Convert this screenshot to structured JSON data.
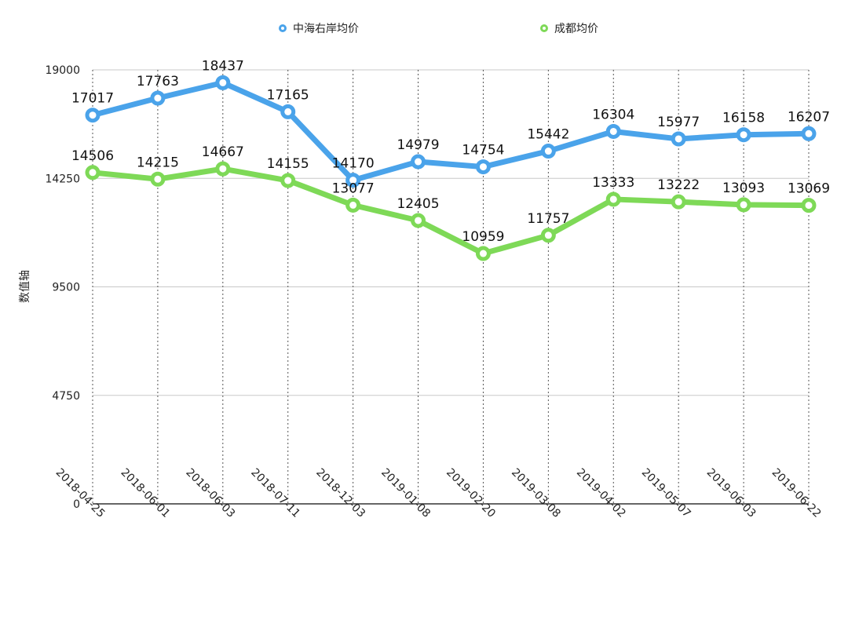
{
  "chart_data": {
    "type": "line",
    "title": "",
    "xlabel": "",
    "ylabel": "数值轴",
    "ylim": [
      0,
      19000
    ],
    "yticks": [
      0,
      4750,
      9500,
      14250,
      19000
    ],
    "categories": [
      "2018-04-25",
      "2018-06-01",
      "2018-06-03",
      "2018-07-11",
      "2018-12-03",
      "2019-01-08",
      "2019-02-20",
      "2019-03-08",
      "2019-04-02",
      "2019-05-07",
      "2019-06-03",
      "2019-06-22"
    ],
    "series": [
      {
        "name": "中海右岸均价",
        "color": "#4aa3ea",
        "values": [
          17017,
          17763,
          18437,
          17165,
          14170,
          14979,
          14754,
          15442,
          16304,
          15977,
          16158,
          16207
        ]
      },
      {
        "name": "成都均价",
        "color": "#7ed957",
        "values": [
          14506,
          14215,
          14667,
          14155,
          13077,
          12405,
          10959,
          11757,
          13333,
          13222,
          13093,
          13069
        ]
      }
    ],
    "legend_position": "top",
    "grid": true
  }
}
